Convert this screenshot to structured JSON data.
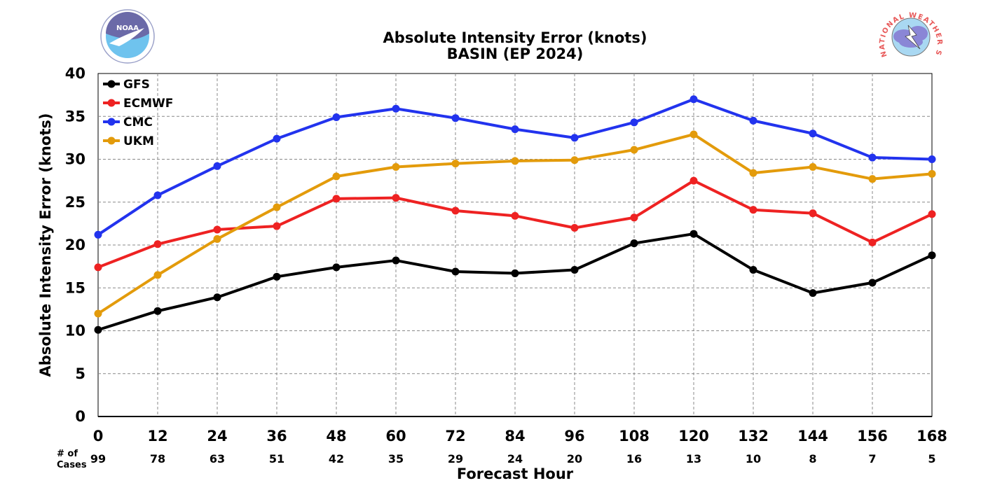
{
  "chart_data": {
    "type": "line",
    "title": "Absolute Intensity Error (knots)",
    "subtitle": "BASIN (EP 2024)",
    "xlabel": "Forecast Hour",
    "ylabel": "Absolute Intensity Error (knots)",
    "x": [
      0,
      12,
      24,
      36,
      48,
      60,
      72,
      84,
      96,
      108,
      120,
      132,
      144,
      156,
      168
    ],
    "xlim": [
      0,
      168
    ],
    "ylim": [
      0,
      40
    ],
    "yticks": [
      0,
      5,
      10,
      15,
      20,
      25,
      30,
      35,
      40
    ],
    "grid": true,
    "legend_position": "top-left",
    "cases_label": [
      "# of",
      "Cases"
    ],
    "cases": [
      99,
      78,
      63,
      51,
      42,
      35,
      29,
      24,
      20,
      16,
      13,
      10,
      8,
      7,
      5
    ],
    "series": [
      {
        "name": "GFS",
        "color": "#000000",
        "values": [
          10.1,
          12.3,
          13.9,
          16.3,
          17.4,
          18.2,
          16.9,
          16.7,
          17.1,
          20.2,
          21.3,
          17.1,
          14.4,
          15.6,
          18.8
        ]
      },
      {
        "name": "ECMWF",
        "color": "#ee2222",
        "values": [
          17.4,
          20.1,
          21.8,
          22.2,
          25.4,
          25.5,
          24.0,
          23.4,
          22.0,
          23.2,
          27.5,
          24.1,
          23.7,
          20.3,
          23.6
        ]
      },
      {
        "name": "CMC",
        "color": "#2233ee",
        "values": [
          21.2,
          25.8,
          29.2,
          32.4,
          34.9,
          35.9,
          34.8,
          33.5,
          32.5,
          34.3,
          37.0,
          34.5,
          33.0,
          30.2,
          30.0
        ]
      },
      {
        "name": "UKM",
        "color": "#e39b0b",
        "values": [
          12.0,
          16.5,
          20.7,
          24.4,
          28.0,
          29.1,
          29.5,
          29.8,
          29.9,
          31.1,
          32.9,
          28.4,
          29.1,
          27.7,
          28.3
        ]
      }
    ]
  },
  "logos": {
    "left": {
      "icon": "noaa-logo",
      "text": "NOAA"
    },
    "right": {
      "icon": "nws-logo",
      "text": "NATIONAL WEATHER SERVICE"
    }
  }
}
